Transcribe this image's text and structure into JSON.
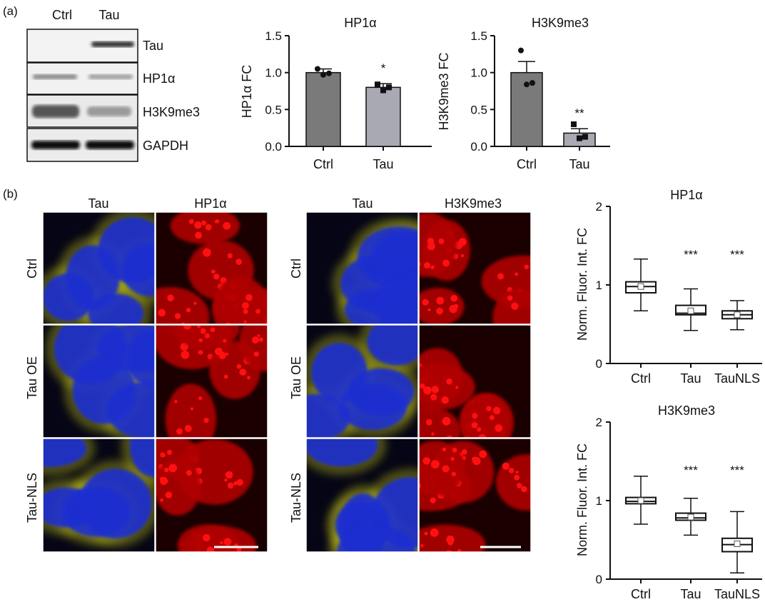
{
  "panel_labels": {
    "a": "(a)",
    "b": "(b)"
  },
  "western_blot": {
    "lanes": [
      "Ctrl",
      "Tau"
    ],
    "proteins": [
      "Tau",
      "HP1α",
      "H3K9me3",
      "GAPDH"
    ]
  },
  "colors": {
    "ctrl_bar": "#7a7a7a",
    "tau_bar": "#a9a9b3",
    "nucleus": "#1e2fd0",
    "tau_signal": "#d8d81a",
    "red_signal": "#ff1010"
  },
  "micro_left": {
    "columns": [
      "Tau",
      "HP1α"
    ],
    "rows": [
      "Ctrl",
      "Tau OE",
      "Tau-NLS"
    ]
  },
  "micro_right": {
    "columns": [
      "Tau",
      "H3K9me3"
    ],
    "rows": [
      "Ctrl",
      "Tau OE",
      "Tau-NLS"
    ]
  },
  "chart_data": [
    {
      "type": "bar",
      "title": "HP1α",
      "ylabel": "HP1α FC",
      "categories": [
        "Ctrl",
        "Tau"
      ],
      "values": [
        1.0,
        0.8
      ],
      "errors": [
        0.05,
        0.05
      ],
      "points": [
        [
          1.05,
          0.99,
          0.97
        ],
        [
          0.84,
          0.8,
          0.76
        ]
      ],
      "significance": [
        "",
        "*"
      ],
      "ylim": [
        0,
        1.5
      ],
      "yticks": [
        "0.0",
        "0.5",
        "1.0",
        "1.5"
      ]
    },
    {
      "type": "bar",
      "title": "H3K9me3",
      "ylabel": "H3K9me3 FC",
      "categories": [
        "Ctrl",
        "Tau"
      ],
      "values": [
        1.0,
        0.18
      ],
      "errors": [
        0.15,
        0.06
      ],
      "points": [
        [
          1.3,
          0.86,
          0.84
        ],
        [
          0.3,
          0.13,
          0.11
        ]
      ],
      "significance": [
        "",
        "**"
      ],
      "ylim": [
        0,
        1.5
      ],
      "yticks": [
        "0.0",
        "0.5",
        "1.0",
        "1.5"
      ]
    },
    {
      "type": "box",
      "title": "HP1α",
      "ylabel": "Norm. Fluor. Int. FC",
      "categories": [
        "Ctrl",
        "Tau",
        "TauNLS"
      ],
      "boxes": [
        {
          "min": 0.67,
          "q1": 0.9,
          "median": 0.98,
          "q3": 1.04,
          "max": 1.33,
          "mean": 0.98
        },
        {
          "min": 0.42,
          "q1": 0.62,
          "median": 0.64,
          "q3": 0.74,
          "max": 0.95,
          "mean": 0.67
        },
        {
          "min": 0.43,
          "q1": 0.57,
          "median": 0.62,
          "q3": 0.67,
          "max": 0.8,
          "mean": 0.62
        }
      ],
      "significance": [
        "",
        "***",
        "***"
      ],
      "ylim": [
        0,
        2
      ],
      "yticks": [
        "0",
        "1",
        "2"
      ]
    },
    {
      "type": "box",
      "title": "H3K9me3",
      "ylabel": "Norm. Fluor. Int. FC",
      "categories": [
        "Ctrl",
        "Tau",
        "TauNLS"
      ],
      "boxes": [
        {
          "min": 0.7,
          "q1": 0.96,
          "median": 0.99,
          "q3": 1.04,
          "max": 1.31,
          "mean": 1.0
        },
        {
          "min": 0.56,
          "q1": 0.75,
          "median": 0.78,
          "q3": 0.84,
          "max": 1.03,
          "mean": 0.79
        },
        {
          "min": 0.08,
          "q1": 0.35,
          "median": 0.44,
          "q3": 0.52,
          "max": 0.86,
          "mean": 0.45
        }
      ],
      "significance": [
        "",
        "***",
        "***"
      ],
      "ylim": [
        0,
        2
      ],
      "yticks": [
        "0",
        "1",
        "2"
      ]
    }
  ]
}
